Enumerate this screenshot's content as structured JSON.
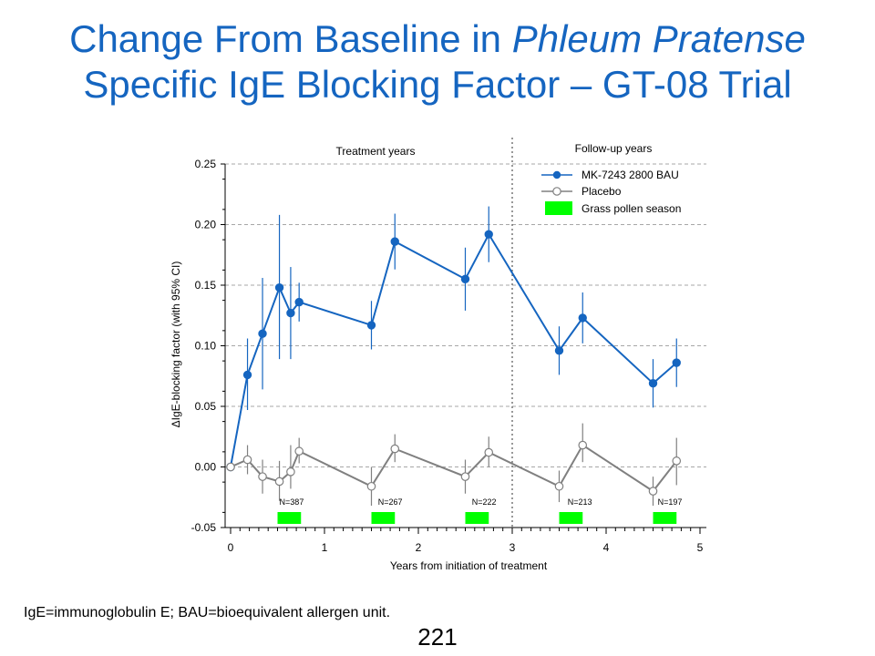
{
  "slide": {
    "title_line1_prefix": "Change From Baseline in ",
    "title_line1_italic": "Phleum Pratense",
    "title_line2": "Specific IgE Blocking Factor – GT-08 Trial",
    "footnote": "IgE=immunoglobulin E; BAU=bioequivalent allergen unit.",
    "page_number": "221"
  },
  "chart_data": {
    "type": "line",
    "title": "",
    "xlabel": "Years from initiation of treatment",
    "ylabel": "ΔIgE-blocking factor (with 95% CI)",
    "xlim": [
      0,
      5
    ],
    "ylim": [
      -0.05,
      0.25
    ],
    "x_ticks": [
      0,
      1,
      2,
      3,
      4,
      5
    ],
    "y_ticks": [
      -0.05,
      0.0,
      0.05,
      0.1,
      0.15,
      0.2,
      0.25
    ],
    "y_tick_labels": [
      "-0.05",
      "0.00",
      "0.05",
      "0.10",
      "0.15",
      "0.20",
      "0.25"
    ],
    "grid": "horizontal dashed",
    "legend_position": "top-right",
    "regions": [
      {
        "label": "Treatment years",
        "x_range": [
          0,
          3
        ]
      },
      {
        "label": "Follow-up years",
        "x_range": [
          3,
          5
        ]
      }
    ],
    "divider_x": 3,
    "series": [
      {
        "name": "MK-7243 2800 BAU",
        "color": "#1565c0",
        "marker": "filled-circle",
        "points": [
          {
            "x": 0.0,
            "y": 0.0
          },
          {
            "x": 0.18,
            "y": 0.076,
            "lo": 0.047,
            "hi": 0.106
          },
          {
            "x": 0.34,
            "y": 0.11,
            "lo": 0.064,
            "hi": 0.156
          },
          {
            "x": 0.52,
            "y": 0.148,
            "lo": 0.089,
            "hi": 0.208
          },
          {
            "x": 0.64,
            "y": 0.127,
            "lo": 0.089,
            "hi": 0.165
          },
          {
            "x": 0.73,
            "y": 0.136,
            "lo": 0.12,
            "hi": 0.152
          },
          {
            "x": 1.5,
            "y": 0.117,
            "lo": 0.097,
            "hi": 0.137
          },
          {
            "x": 1.75,
            "y": 0.186,
            "lo": 0.163,
            "hi": 0.209
          },
          {
            "x": 2.5,
            "y": 0.155,
            "lo": 0.129,
            "hi": 0.181
          },
          {
            "x": 2.75,
            "y": 0.192,
            "lo": 0.169,
            "hi": 0.215
          },
          {
            "x": 3.5,
            "y": 0.096,
            "lo": 0.076,
            "hi": 0.116
          },
          {
            "x": 3.75,
            "y": 0.123,
            "lo": 0.102,
            "hi": 0.144
          },
          {
            "x": 4.5,
            "y": 0.069,
            "lo": 0.049,
            "hi": 0.089
          },
          {
            "x": 4.75,
            "y": 0.086,
            "lo": 0.066,
            "hi": 0.106
          }
        ]
      },
      {
        "name": "Placebo",
        "color": "#808080",
        "marker": "open-circle",
        "points": [
          {
            "x": 0.0,
            "y": 0.0
          },
          {
            "x": 0.18,
            "y": 0.006,
            "lo": -0.006,
            "hi": 0.018
          },
          {
            "x": 0.34,
            "y": -0.008,
            "lo": -0.022,
            "hi": 0.006
          },
          {
            "x": 0.52,
            "y": -0.012,
            "lo": -0.028,
            "hi": 0.005
          },
          {
            "x": 0.64,
            "y": -0.004,
            "lo": -0.018,
            "hi": 0.018
          },
          {
            "x": 0.73,
            "y": 0.013,
            "lo": 0.003,
            "hi": 0.024
          },
          {
            "x": 1.5,
            "y": -0.016,
            "lo": -0.032,
            "hi": 0.0
          },
          {
            "x": 1.75,
            "y": 0.015,
            "lo": 0.004,
            "hi": 0.027
          },
          {
            "x": 2.5,
            "y": -0.008,
            "lo": -0.022,
            "hi": 0.006
          },
          {
            "x": 2.75,
            "y": 0.012,
            "lo": 0.0,
            "hi": 0.025
          },
          {
            "x": 3.5,
            "y": -0.016,
            "lo": -0.029,
            "hi": -0.003
          },
          {
            "x": 3.75,
            "y": 0.018,
            "lo": 0.004,
            "hi": 0.036
          },
          {
            "x": 4.5,
            "y": -0.02,
            "lo": -0.032,
            "hi": -0.008
          },
          {
            "x": 4.75,
            "y": 0.005,
            "lo": -0.015,
            "hi": 0.024
          }
        ]
      }
    ],
    "grass_pollen_season": {
      "label": "Grass pollen season",
      "color": "#00ff00",
      "periods": [
        [
          0.5,
          0.75
        ],
        [
          1.5,
          1.75
        ],
        [
          2.5,
          2.75
        ],
        [
          3.5,
          3.75
        ],
        [
          4.5,
          4.75
        ]
      ]
    },
    "n_labels": [
      {
        "x": 0.65,
        "text": "N=387"
      },
      {
        "x": 1.7,
        "text": "N=267"
      },
      {
        "x": 2.7,
        "text": "N=222"
      },
      {
        "x": 3.72,
        "text": "N=213"
      },
      {
        "x": 4.68,
        "text": "N=197"
      }
    ]
  }
}
